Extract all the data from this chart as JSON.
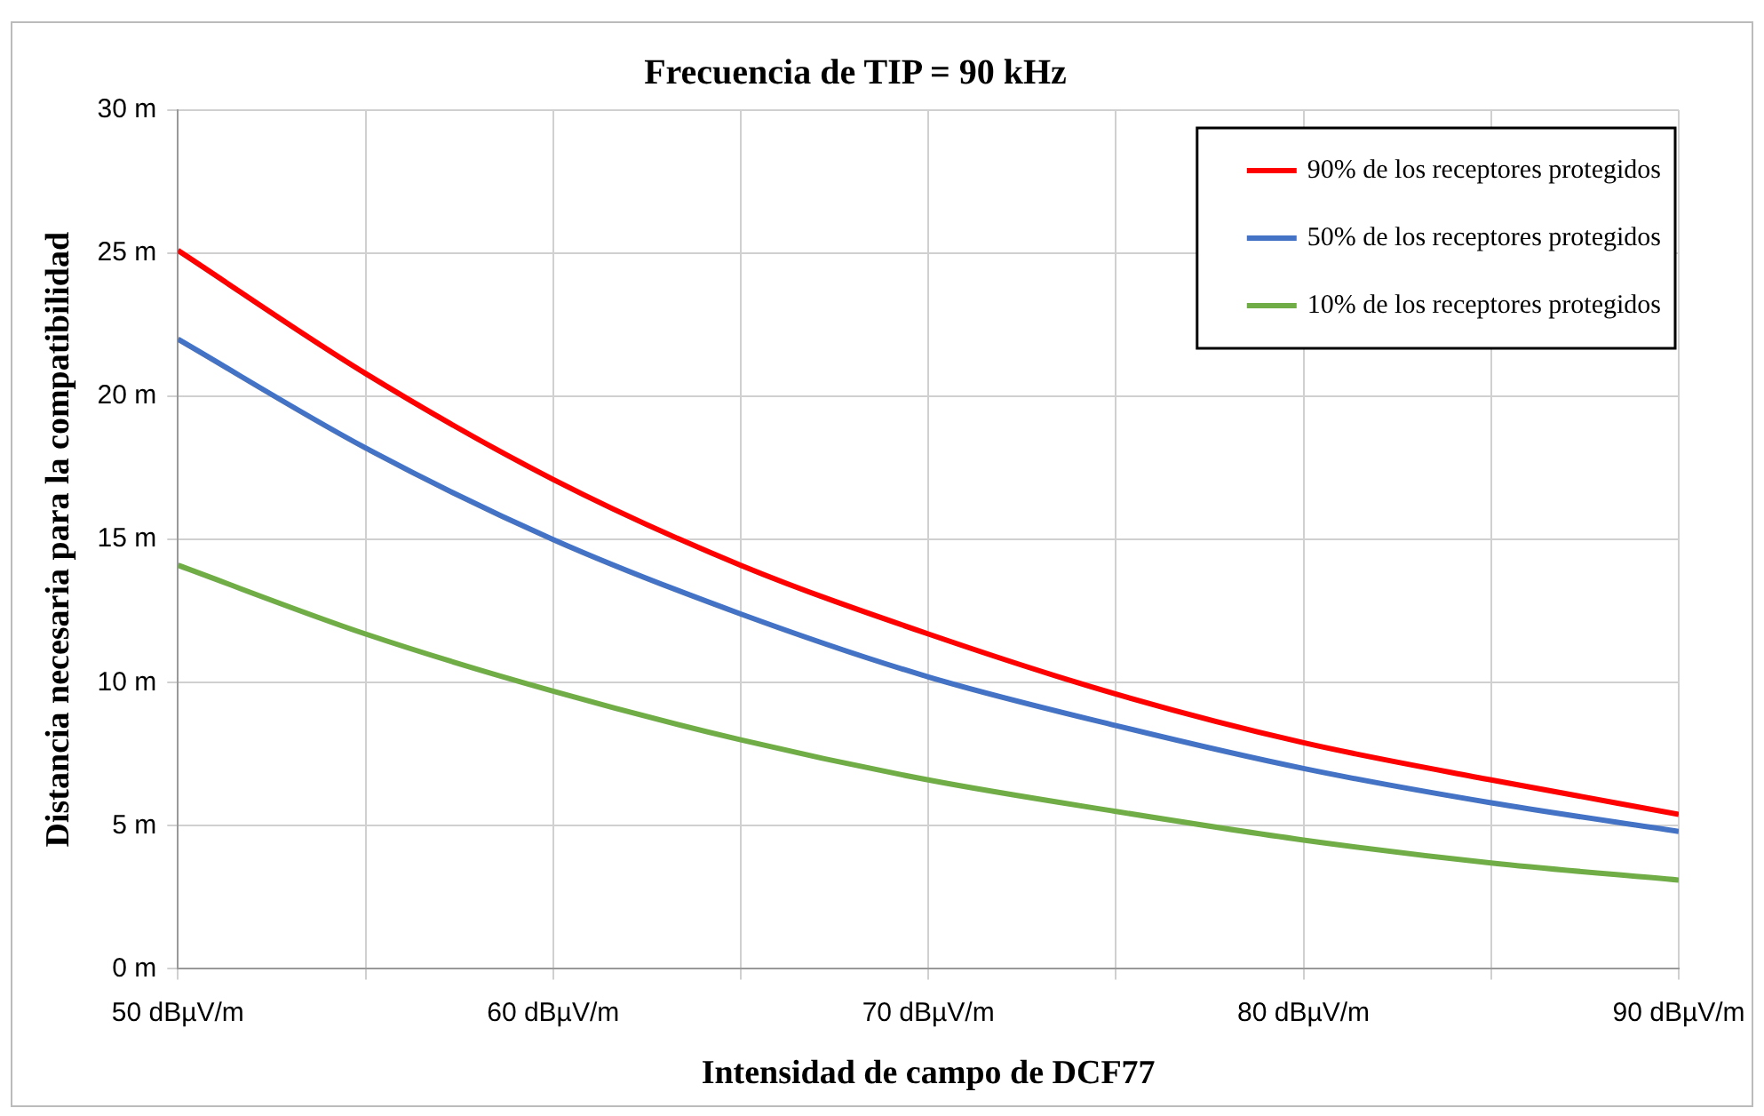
{
  "chart_data": {
    "type": "line",
    "title": "Frecuencia de TIP = 90 kHz",
    "xlabel": "Intensidad de campo de DCF77",
    "ylabel": "Distancia necesaria para la compatibilidad",
    "x": [
      50,
      55,
      60,
      65,
      70,
      75,
      80,
      85,
      90
    ],
    "series": [
      {
        "name": "90% de los receptores protegidos",
        "color": "#ff0000",
        "values": [
          25.1,
          20.8,
          17.1,
          14.1,
          11.7,
          9.6,
          7.9,
          6.6,
          5.4
        ]
      },
      {
        "name": "50% de los receptores protegidos",
        "color": "#4472c4",
        "values": [
          22.0,
          18.2,
          15.0,
          12.4,
          10.2,
          8.5,
          7.0,
          5.8,
          4.8
        ]
      },
      {
        "name": "10% de los receptores protegidos",
        "color": "#70ad47",
        "values": [
          14.1,
          11.7,
          9.7,
          8.0,
          6.6,
          5.5,
          4.5,
          3.7,
          3.1
        ]
      }
    ],
    "xlim": [
      50,
      90
    ],
    "xticks": [
      {
        "value": 50,
        "label": "50 dBµV/m"
      },
      {
        "value": 55,
        "label": null
      },
      {
        "value": 60,
        "label": "60 dBµV/m"
      },
      {
        "value": 65,
        "label": null
      },
      {
        "value": 70,
        "label": "70 dBµV/m"
      },
      {
        "value": 75,
        "label": null
      },
      {
        "value": 80,
        "label": "80 dBµV/m"
      },
      {
        "value": 85,
        "label": null
      },
      {
        "value": 90,
        "label": "90 dBµV/m"
      }
    ],
    "ylim": [
      0,
      30
    ],
    "yticks": [
      {
        "value": 0,
        "label": "0 m"
      },
      {
        "value": 5,
        "label": "5 m"
      },
      {
        "value": 10,
        "label": "10 m"
      },
      {
        "value": 15,
        "label": "15 m"
      },
      {
        "value": 20,
        "label": "20 m"
      },
      {
        "value": 25,
        "label": "25 m"
      },
      {
        "value": 30,
        "label": "30 m"
      }
    ],
    "grid": true,
    "legend": "top right",
    "marker": "none",
    "line_style": "solid"
  }
}
